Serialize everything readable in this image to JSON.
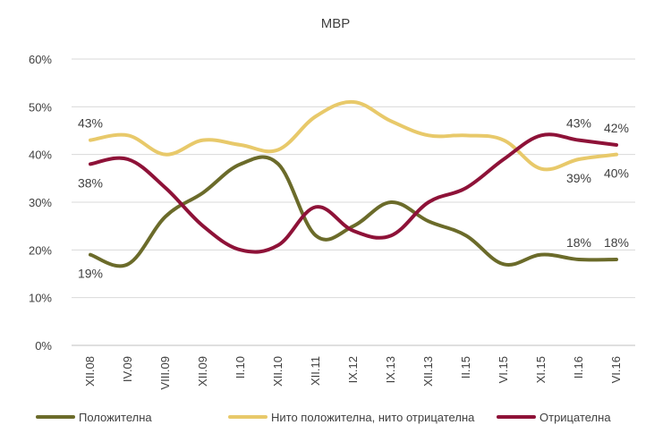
{
  "chart_data": {
    "type": "line",
    "title": "МВР",
    "xlabel": "",
    "ylabel": "",
    "ylim": [
      0,
      60
    ],
    "yticks": [
      "0%",
      "10%",
      "20%",
      "30%",
      "40%",
      "50%",
      "60%"
    ],
    "categories": [
      "XII.08",
      "IV.09",
      "VIII.09",
      "XII.09",
      "II.10",
      "XII.10",
      "XII.11",
      "IX.12",
      "IX.13",
      "XII.13",
      "II.15",
      "VI.15",
      "XI.15",
      "II.16",
      "VI.16"
    ],
    "grid": true,
    "legend_position": "bottom",
    "series": [
      {
        "name": "Положителна",
        "color": "#6b6b2a",
        "values": [
          19,
          17,
          27,
          32,
          38,
          38,
          23,
          25,
          30,
          26,
          23,
          17,
          19,
          18,
          18
        ]
      },
      {
        "name": "Нито положителна, нито отрицателна",
        "color": "#e8c96a",
        "values": [
          43,
          44,
          40,
          43,
          42,
          41,
          48,
          51,
          47,
          44,
          44,
          43,
          37,
          39,
          40
        ]
      },
      {
        "name": "Отрицателна",
        "color": "#8e1238",
        "values": [
          38,
          39,
          33,
          25,
          20,
          21,
          29,
          24,
          23,
          30,
          33,
          39,
          44,
          43,
          42
        ]
      }
    ],
    "annotations": [
      {
        "text": "43%",
        "series": 1,
        "index": 0,
        "pos": "above"
      },
      {
        "text": "38%",
        "series": 2,
        "index": 0,
        "pos": "below"
      },
      {
        "text": "19%",
        "series": 0,
        "index": 0,
        "pos": "below"
      },
      {
        "text": "43%",
        "series": 2,
        "index": 13,
        "pos": "above"
      },
      {
        "text": "42%",
        "series": 2,
        "index": 14,
        "pos": "above"
      },
      {
        "text": "39%",
        "series": 1,
        "index": 13,
        "pos": "below"
      },
      {
        "text": "40%",
        "series": 1,
        "index": 14,
        "pos": "below"
      },
      {
        "text": "18%",
        "series": 0,
        "index": 13,
        "pos": "above"
      },
      {
        "text": "18%",
        "series": 0,
        "index": 14,
        "pos": "above"
      }
    ]
  }
}
